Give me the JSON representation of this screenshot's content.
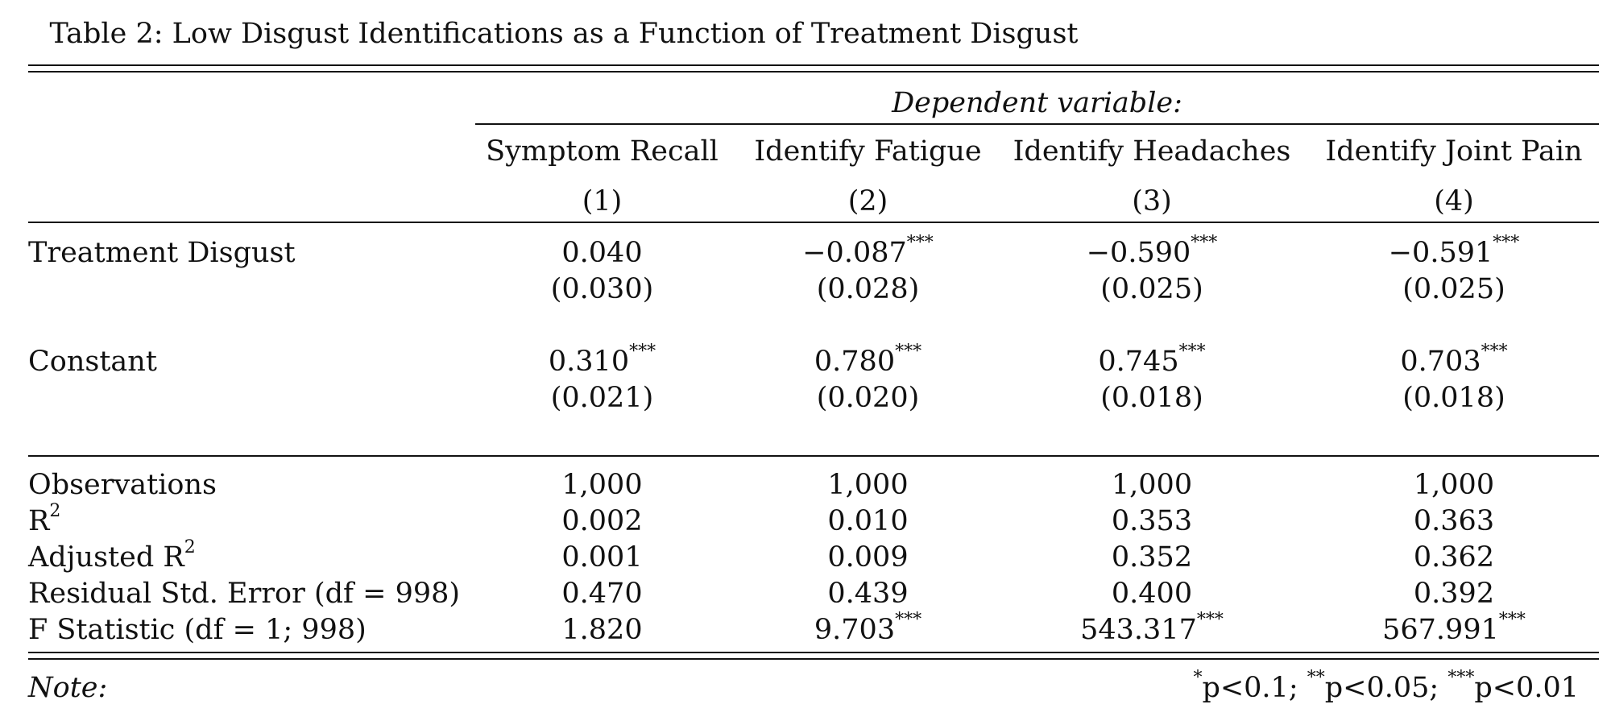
{
  "caption": "Table 2: Low Disgust Identifications as a Function of Treatment Disgust",
  "header": {
    "dependent_variable": "Dependent variable:",
    "columns": [
      {
        "name": "Symptom Recall",
        "number": "(1)"
      },
      {
        "name": "Identify Fatigue",
        "number": "(2)"
      },
      {
        "name": "Identify Headaches",
        "number": "(3)"
      },
      {
        "name": "Identify Joint Pain",
        "number": "(4)"
      }
    ]
  },
  "coefficients": [
    {
      "label": "Treatment Disgust",
      "values": [
        {
          "est": "0.040",
          "stars": "",
          "se": "(0.030)"
        },
        {
          "est": "−0.087",
          "stars": "***",
          "se": "(0.028)"
        },
        {
          "est": "−0.590",
          "stars": "***",
          "se": "(0.025)"
        },
        {
          "est": "−0.591",
          "stars": "***",
          "se": "(0.025)"
        }
      ]
    },
    {
      "label": "Constant",
      "values": [
        {
          "est": "0.310",
          "stars": "***",
          "se": "(0.021)"
        },
        {
          "est": "0.780",
          "stars": "***",
          "se": "(0.020)"
        },
        {
          "est": "0.745",
          "stars": "***",
          "se": "(0.018)"
        },
        {
          "est": "0.703",
          "stars": "***",
          "se": "(0.018)"
        }
      ]
    }
  ],
  "stats": [
    {
      "label": "Observations",
      "sup": "",
      "values": [
        {
          "v": "1,000",
          "stars": ""
        },
        {
          "v": "1,000",
          "stars": ""
        },
        {
          "v": "1,000",
          "stars": ""
        },
        {
          "v": "1,000",
          "stars": ""
        }
      ]
    },
    {
      "label": "R",
      "sup": "2",
      "values": [
        {
          "v": "0.002",
          "stars": ""
        },
        {
          "v": "0.010",
          "stars": ""
        },
        {
          "v": "0.353",
          "stars": ""
        },
        {
          "v": "0.363",
          "stars": ""
        }
      ]
    },
    {
      "label": "Adjusted R",
      "sup": "2",
      "values": [
        {
          "v": "0.001",
          "stars": ""
        },
        {
          "v": "0.009",
          "stars": ""
        },
        {
          "v": "0.352",
          "stars": ""
        },
        {
          "v": "0.362",
          "stars": ""
        }
      ]
    },
    {
      "label": "Residual Std. Error (df = 998)",
      "sup": "",
      "values": [
        {
          "v": "0.470",
          "stars": ""
        },
        {
          "v": "0.439",
          "stars": ""
        },
        {
          "v": "0.400",
          "stars": ""
        },
        {
          "v": "0.392",
          "stars": ""
        }
      ]
    },
    {
      "label": "F Statistic (df = 1; 998)",
      "sup": "",
      "values": [
        {
          "v": "1.820",
          "stars": ""
        },
        {
          "v": "9.703",
          "stars": "***"
        },
        {
          "v": "543.317",
          "stars": "***"
        },
        {
          "v": "567.991",
          "stars": "***"
        }
      ]
    }
  ],
  "note": {
    "label": "Note:",
    "s1": "*",
    "t1": "p<0.1; ",
    "s2": "**",
    "t2": "p<0.05; ",
    "s3": "***",
    "t3": "p<0.01"
  }
}
